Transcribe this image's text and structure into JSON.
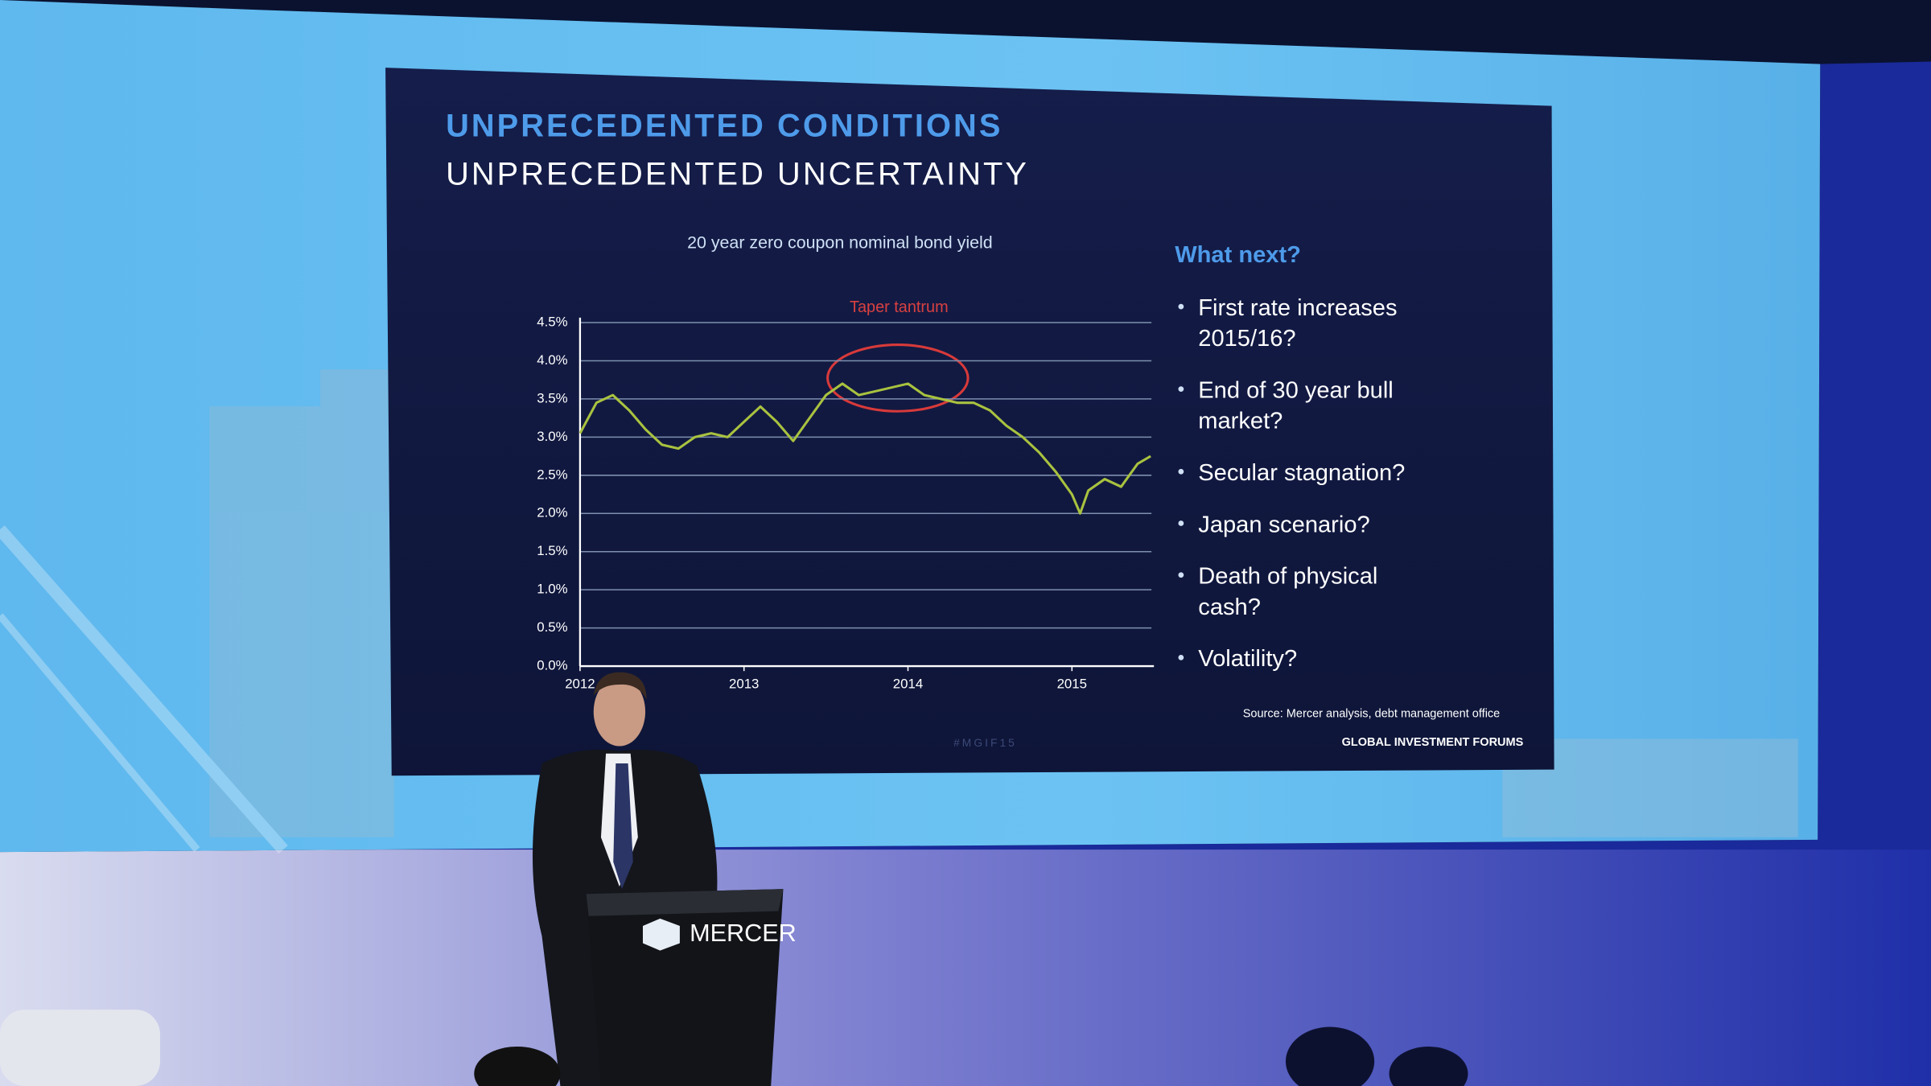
{
  "slide": {
    "title_line_1": "UNPRECEDENTED CONDITIONS",
    "title_line_2": "UNPRECEDENTED UNCERTAINTY",
    "side_heading": "What next?",
    "bullets": [
      {
        "lines": [
          "First rate increases",
          "2015/16?"
        ]
      },
      {
        "lines": [
          "End of 30 year bull",
          "market?"
        ]
      },
      {
        "lines": [
          "Secular stagnation?"
        ]
      },
      {
        "lines": [
          "Japan scenario?"
        ]
      },
      {
        "lines": [
          "Death of physical",
          "cash?"
        ]
      },
      {
        "lines": [
          "Volatility?"
        ]
      }
    ],
    "source": "Source: Mercer analysis, debt management office",
    "footer": "GLOBAL INVESTMENT FORUMS",
    "hashtag": "#MGIF15"
  },
  "podium": {
    "brand": "MERCER"
  },
  "chart_data": {
    "type": "line",
    "title": "20 year zero coupon nominal bond yield",
    "annotation": "Taper tantrum",
    "x": [
      2012.0,
      2012.1,
      2012.2,
      2012.3,
      2012.4,
      2012.5,
      2012.6,
      2012.7,
      2012.8,
      2012.9,
      2013.0,
      2013.1,
      2013.2,
      2013.3,
      2013.4,
      2013.5,
      2013.6,
      2013.7,
      2013.8,
      2013.9,
      2014.0,
      2014.1,
      2014.2,
      2014.3,
      2014.4,
      2014.5,
      2014.6,
      2014.7,
      2014.8,
      2014.9,
      2015.0,
      2015.05,
      2015.1,
      2015.2,
      2015.3,
      2015.4,
      2015.48
    ],
    "values": [
      3.05,
      3.45,
      3.55,
      3.35,
      3.1,
      2.9,
      2.85,
      3.0,
      3.05,
      3.0,
      3.2,
      3.4,
      3.2,
      2.95,
      3.25,
      3.55,
      3.7,
      3.55,
      3.6,
      3.65,
      3.7,
      3.55,
      3.5,
      3.45,
      3.45,
      3.35,
      3.15,
      3.0,
      2.8,
      2.55,
      2.25,
      2.0,
      2.3,
      2.45,
      2.35,
      2.65,
      2.75
    ],
    "color": "#a9c23f",
    "xlim": [
      2012,
      2015.5
    ],
    "xticks": [
      2012,
      2013,
      2014,
      2015
    ],
    "ylim": [
      0,
      4.5
    ],
    "yticks": [
      {
        "value": 0,
        "label": "0.0%"
      },
      {
        "value": 0.5,
        "label": "0.5%"
      },
      {
        "value": 1,
        "label": "1.0%"
      },
      {
        "value": 1.5,
        "label": "1.5%"
      },
      {
        "value": 2,
        "label": "2.0%"
      },
      {
        "value": 2.5,
        "label": "2.5%"
      },
      {
        "value": 3,
        "label": "3.0%"
      },
      {
        "value": 3.5,
        "label": "3.5%"
      },
      {
        "value": 4,
        "label": "4.0%"
      },
      {
        "value": 4.5,
        "label": "4.5%"
      }
    ],
    "grid": true
  }
}
